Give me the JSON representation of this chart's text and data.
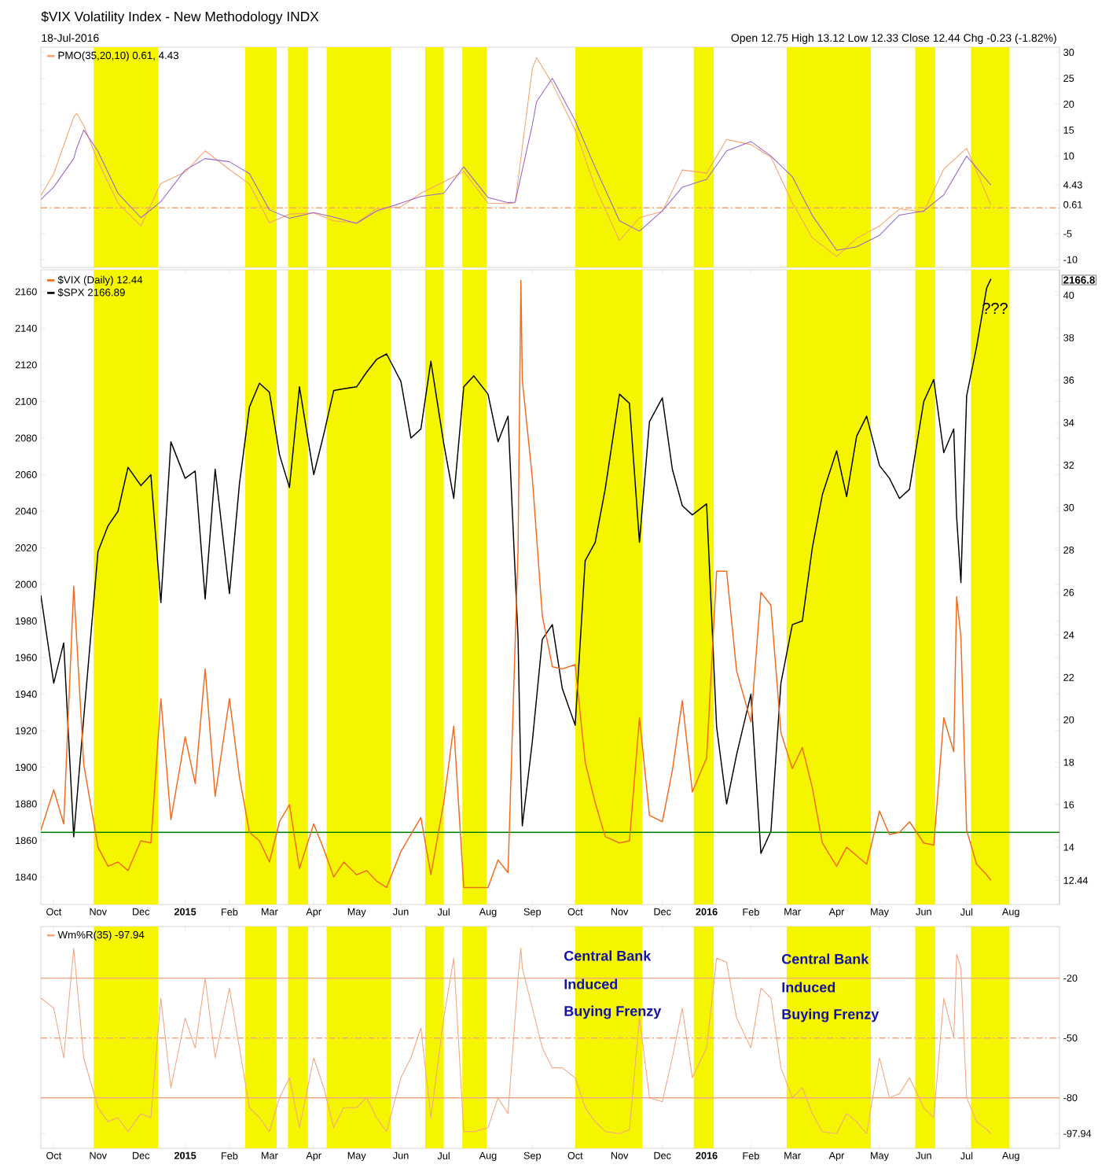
{
  "chart_data": [
    {
      "type": "line",
      "title": "$VIX Volatility Index - New Methodology INDX",
      "subtitle": "18-Jul-2016",
      "annotations": [
        "Open 12.75 High 13.12 Low 12.33 Close 12.44 Chg -0.23 (-1.82%)"
      ],
      "x": [
        "2014-09-22",
        "2014-10-01",
        "2014-10-15",
        "2014-10-17",
        "2014-10-22",
        "2014-11-01",
        "2014-11-15",
        "2014-12-01",
        "2014-12-15",
        "2015-01-01",
        "2015-01-15",
        "2015-02-01",
        "2015-02-15",
        "2015-03-01",
        "2015-03-15",
        "2015-04-01",
        "2015-04-15",
        "2015-05-01",
        "2015-05-15",
        "2015-06-01",
        "2015-06-15",
        "2015-07-01",
        "2015-07-15",
        "2015-08-01",
        "2015-08-15",
        "2015-08-20",
        "2015-09-01",
        "2015-09-04",
        "2015-09-15",
        "2015-10-01",
        "2015-10-15",
        "2015-11-01",
        "2015-11-15",
        "2015-12-01",
        "2015-12-15",
        "2016-01-01",
        "2016-01-15",
        "2016-02-01",
        "2016-02-15",
        "2016-03-01",
        "2016-03-15",
        "2016-04-01",
        "2016-04-15",
        "2016-05-01",
        "2016-05-15",
        "2016-06-01",
        "2016-06-15",
        "2016-07-01",
        "2016-07-18"
      ],
      "series": [
        {
          "name": "PMO(35,20,10) 0.61, 4.43",
          "color": "#f5a36f",
          "values": [
            2.4,
            6.6,
            17.5,
            18.2,
            15.9,
            9.0,
            0.9,
            -3.5,
            4.7,
            6.9,
            11.0,
            7.4,
            4.6,
            -2.9,
            -1.2,
            -1.0,
            -2.5,
            -2.9,
            -0.2,
            0.2,
            2.8,
            5.0,
            7.0,
            0.9,
            0.8,
            1.0,
            26.8,
            29.0,
            24.0,
            15.0,
            4.0,
            -6.3,
            -1.9,
            -0.7,
            7.3,
            6.7,
            13.2,
            12.2,
            9.8,
            1.0,
            -5.8,
            -9.4,
            -5.9,
            -3.5,
            -0.2,
            -0.8,
            7.5,
            11.5,
            0.6
          ]
        },
        {
          "color": "#9966cc",
          "values": [
            1.6,
            4.0,
            9.5,
            11.5,
            15.0,
            10.9,
            2.8,
            -1.9,
            1.2,
            7.3,
            9.5,
            8.9,
            6.6,
            -0.4,
            -2.0,
            -0.9,
            -1.8,
            -3.0,
            -0.6,
            0.9,
            2.2,
            2.8,
            7.9,
            2.0,
            1.0,
            1.1,
            16.0,
            20.5,
            25.0,
            16.8,
            7.8,
            -2.5,
            -4.5,
            -0.6,
            4.0,
            5.5,
            11.0,
            12.8,
            10.0,
            6.0,
            -1.5,
            -8.2,
            -7.5,
            -5.3,
            -1.4,
            -0.6,
            2.5,
            10.0,
            4.4
          ]
        }
      ],
      "xlim": [
        "2014-09-22",
        "2016-09-04"
      ],
      "ylim": [
        -11.5,
        31
      ],
      "yticks": [
        -10,
        -5,
        0.61,
        4.43,
        10,
        15,
        20,
        25,
        30
      ],
      "tick_labels": "y",
      "ref_lines": [
        {
          "axis": "y",
          "value": 0,
          "color": "#f5a36f",
          "line_style": "dashed"
        }
      ],
      "bands": [
        {
          "axis": "x",
          "from": "2014-10-29",
          "to": "2014-12-13",
          "color": "#f5f500"
        },
        {
          "axis": "x",
          "from": "2015-02-12",
          "to": "2015-03-06",
          "color": "#f5f500"
        },
        {
          "axis": "x",
          "from": "2015-03-14",
          "to": "2015-03-28",
          "color": "#f5f500"
        },
        {
          "axis": "x",
          "from": "2015-04-10",
          "to": "2015-05-25",
          "color": "#f5f500"
        },
        {
          "axis": "x",
          "from": "2015-06-18",
          "to": "2015-07-01",
          "color": "#f5f500"
        },
        {
          "axis": "x",
          "from": "2015-07-14",
          "to": "2015-07-31",
          "color": "#f5f500"
        },
        {
          "axis": "x",
          "from": "2015-10-01",
          "to": "2015-11-17",
          "color": "#f5f500"
        },
        {
          "axis": "x",
          "from": "2015-12-23",
          "to": "2016-01-06",
          "color": "#f5f500"
        },
        {
          "axis": "x",
          "from": "2016-02-26",
          "to": "2016-04-25",
          "color": "#f5f500"
        },
        {
          "axis": "x",
          "from": "2016-05-26",
          "to": "2016-06-09",
          "color": "#f5f500"
        },
        {
          "axis": "x",
          "from": "2016-07-04",
          "to": "2016-07-31",
          "color": "#f5f500"
        }
      ],
      "legend": "top left"
    },
    {
      "type": "line",
      "x": [
        "2014-09-22",
        "2014-10-01",
        "2014-10-08",
        "2014-10-15",
        "2014-10-22",
        "2014-11-01",
        "2014-11-08",
        "2014-11-15",
        "2014-11-22",
        "2014-12-01",
        "2014-12-08",
        "2014-12-15",
        "2014-12-22",
        "2015-01-01",
        "2015-01-08",
        "2015-01-15",
        "2015-01-22",
        "2015-02-01",
        "2015-02-08",
        "2015-02-15",
        "2015-02-22",
        "2015-03-01",
        "2015-03-08",
        "2015-03-15",
        "2015-03-22",
        "2015-04-01",
        "2015-04-08",
        "2015-04-15",
        "2015-04-22",
        "2015-05-01",
        "2015-05-08",
        "2015-05-15",
        "2015-05-22",
        "2015-06-01",
        "2015-06-08",
        "2015-06-15",
        "2015-06-22",
        "2015-07-01",
        "2015-07-08",
        "2015-07-15",
        "2015-07-22",
        "2015-08-01",
        "2015-08-08",
        "2015-08-15",
        "2015-08-22",
        "2015-08-24",
        "2015-08-25",
        "2015-09-01",
        "2015-09-08",
        "2015-09-15",
        "2015-09-22",
        "2015-10-01",
        "2015-10-08",
        "2015-10-15",
        "2015-10-22",
        "2015-11-01",
        "2015-11-08",
        "2015-11-15",
        "2015-11-22",
        "2015-12-01",
        "2015-12-08",
        "2015-12-15",
        "2015-12-22",
        "2016-01-01",
        "2016-01-08",
        "2016-01-15",
        "2016-01-22",
        "2016-02-01",
        "2016-02-08",
        "2016-02-15",
        "2016-02-22",
        "2016-03-01",
        "2016-03-08",
        "2016-03-15",
        "2016-03-22",
        "2016-04-01",
        "2016-04-08",
        "2016-04-15",
        "2016-04-22",
        "2016-05-01",
        "2016-05-08",
        "2016-05-15",
        "2016-05-22",
        "2016-06-01",
        "2016-06-08",
        "2016-06-15",
        "2016-06-22",
        "2016-06-24",
        "2016-06-27",
        "2016-07-01",
        "2016-07-08",
        "2016-07-15",
        "2016-07-18"
      ],
      "series": [
        {
          "name": "$SPX 2166.89",
          "color": "#000000",
          "values": [
            1994,
            1946,
            1968,
            1862,
            1927,
            2018,
            2032,
            2040,
            2064,
            2054,
            2060,
            1990,
            2078,
            2058,
            2062,
            1992,
            2063,
            1995,
            2055,
            2097,
            2110,
            2105,
            2071,
            2053,
            2108,
            2060,
            2082,
            2106,
            2107,
            2108,
            2116,
            2123,
            2126,
            2111,
            2080,
            2085,
            2122,
            2077,
            2047,
            2108,
            2114,
            2104,
            2078,
            2092,
            1971,
            1893,
            1868,
            1914,
            1970,
            1978,
            1943,
            1923,
            2013,
            2023,
            2052,
            2104,
            2099,
            2023,
            2089,
            2102,
            2063,
            2043,
            2038,
            2044,
            1922,
            1880,
            1907,
            1940,
            1853,
            1865,
            1946,
            1978,
            1980,
            2020,
            2049,
            2073,
            2048,
            2081,
            2092,
            2065,
            2058,
            2047,
            2052,
            2100,
            2112,
            2072,
            2085,
            2037,
            2001,
            2103,
            2130,
            2162,
            2167
          ]
        },
        {
          "name": "$VIX (Daily) 12.44",
          "color": "#f26b1d",
          "axis": "y2",
          "values": [
            14.8,
            16.7,
            15.1,
            26.3,
            17.9,
            14.0,
            13.1,
            13.3,
            12.9,
            14.3,
            14.2,
            21.0,
            15.3,
            19.2,
            17.0,
            22.4,
            16.4,
            21.0,
            17.3,
            14.7,
            14.3,
            13.3,
            15.2,
            16.0,
            13.0,
            15.1,
            13.9,
            12.6,
            13.3,
            12.7,
            12.9,
            12.4,
            12.1,
            13.8,
            14.6,
            15.4,
            12.7,
            16.1,
            19.7,
            12.1,
            12.1,
            12.1,
            13.4,
            12.8,
            28.0,
            40.7,
            36.0,
            31.4,
            24.9,
            22.5,
            22.4,
            22.6,
            18.0,
            16.1,
            14.5,
            14.2,
            14.3,
            20.1,
            15.5,
            15.2,
            17.6,
            20.9,
            16.6,
            18.2,
            27.0,
            27.0,
            22.3,
            19.9,
            26.0,
            25.4,
            19.4,
            17.7,
            18.7,
            16.8,
            14.2,
            13.1,
            14.0,
            13.6,
            13.2,
            15.7,
            14.6,
            14.7,
            15.2,
            14.2,
            14.1,
            20.1,
            18.5,
            25.8,
            23.9,
            14.8,
            13.2,
            12.7,
            12.44
          ]
        }
      ],
      "xlim": [
        "2014-09-22",
        "2016-09-04"
      ],
      "xticks": [
        {
          "value": "2014-10-01",
          "label": "Oct"
        },
        {
          "value": "2014-11-01",
          "label": "Nov"
        },
        {
          "value": "2014-12-01",
          "label": "Dec"
        },
        {
          "value": "2015-01-01",
          "label": "2015"
        },
        {
          "value": "2015-02-01",
          "label": "Feb"
        },
        {
          "value": "2015-03-01",
          "label": "Mar"
        },
        {
          "value": "2015-04-01",
          "label": "Apr"
        },
        {
          "value": "2015-05-01",
          "label": "May"
        },
        {
          "value": "2015-06-01",
          "label": "Jun"
        },
        {
          "value": "2015-07-01",
          "label": "Jul"
        },
        {
          "value": "2015-08-01",
          "label": "Aug"
        },
        {
          "value": "2015-09-01",
          "label": "Sep"
        },
        {
          "value": "2015-10-01",
          "label": "Oct"
        },
        {
          "value": "2015-11-01",
          "label": "Nov"
        },
        {
          "value": "2015-12-01",
          "label": "Dec"
        },
        {
          "value": "2016-01-01",
          "label": "2016"
        },
        {
          "value": "2016-02-01",
          "label": "Feb"
        },
        {
          "value": "2016-03-01",
          "label": "Mar"
        },
        {
          "value": "2016-04-01",
          "label": "Apr"
        },
        {
          "value": "2016-05-01",
          "label": "May"
        },
        {
          "value": "2016-06-01",
          "label": "Jun"
        },
        {
          "value": "2016-07-01",
          "label": "Jul"
        },
        {
          "value": "2016-08-01",
          "label": "Aug"
        }
      ],
      "ylim": [
        1825,
        2172
      ],
      "yticks": [
        1840,
        1860,
        1880,
        1900,
        1920,
        1940,
        1960,
        1980,
        2000,
        2020,
        2040,
        2060,
        2080,
        2100,
        2120,
        2140,
        2160
      ],
      "y2lim": [
        11.3,
        41.2
      ],
      "y2ticks": [
        12.44,
        14,
        16,
        18,
        20,
        22,
        24,
        26,
        28,
        30,
        32,
        34,
        36,
        38,
        40
      ],
      "ref_lines": [
        {
          "axis": "y2",
          "value": 14.7,
          "color": "#008000"
        }
      ],
      "bands": [
        {
          "axis": "x",
          "from": "2014-10-29",
          "to": "2014-12-13",
          "color": "#f5f500"
        },
        {
          "axis": "x",
          "from": "2015-02-12",
          "to": "2015-03-06",
          "color": "#f5f500"
        },
        {
          "axis": "x",
          "from": "2015-03-14",
          "to": "2015-03-28",
          "color": "#f5f500"
        },
        {
          "axis": "x",
          "from": "2015-04-10",
          "to": "2015-05-25",
          "color": "#f5f500"
        },
        {
          "axis": "x",
          "from": "2015-06-18",
          "to": "2015-07-01",
          "color": "#f5f500"
        },
        {
          "axis": "x",
          "from": "2015-07-14",
          "to": "2015-07-31",
          "color": "#f5f500"
        },
        {
          "axis": "x",
          "from": "2015-10-01",
          "to": "2015-11-17",
          "color": "#f5f500"
        },
        {
          "axis": "x",
          "from": "2015-12-23",
          "to": "2016-01-06",
          "color": "#f5f500"
        },
        {
          "axis": "x",
          "from": "2016-02-26",
          "to": "2016-04-25",
          "color": "#f5f500"
        },
        {
          "axis": "x",
          "from": "2016-05-26",
          "to": "2016-06-09",
          "color": "#f5f500"
        },
        {
          "axis": "x",
          "from": "2016-07-04",
          "to": "2016-07-31",
          "color": "#f5f500"
        }
      ],
      "legend": "top left",
      "annotations": [
        "???",
        "2166.8"
      ]
    },
    {
      "type": "line",
      "x": [
        "2014-09-22",
        "2014-10-01",
        "2014-10-08",
        "2014-10-15",
        "2014-10-22",
        "2014-11-01",
        "2014-11-08",
        "2014-11-15",
        "2014-11-22",
        "2014-12-01",
        "2014-12-08",
        "2014-12-15",
        "2014-12-22",
        "2015-01-01",
        "2015-01-08",
        "2015-01-15",
        "2015-01-22",
        "2015-02-01",
        "2015-02-08",
        "2015-02-15",
        "2015-02-22",
        "2015-03-01",
        "2015-03-08",
        "2015-03-15",
        "2015-03-22",
        "2015-04-01",
        "2015-04-08",
        "2015-04-15",
        "2015-04-22",
        "2015-05-01",
        "2015-05-08",
        "2015-05-15",
        "2015-05-22",
        "2015-06-01",
        "2015-06-08",
        "2015-06-15",
        "2015-06-22",
        "2015-07-01",
        "2015-07-08",
        "2015-07-15",
        "2015-07-22",
        "2015-08-01",
        "2015-08-08",
        "2015-08-15",
        "2015-08-22",
        "2015-08-24",
        "2015-08-25",
        "2015-09-01",
        "2015-09-08",
        "2015-09-15",
        "2015-09-22",
        "2015-10-01",
        "2015-10-08",
        "2015-10-15",
        "2015-10-22",
        "2015-11-01",
        "2015-11-08",
        "2015-11-15",
        "2015-11-22",
        "2015-12-01",
        "2015-12-08",
        "2015-12-15",
        "2015-12-22",
        "2016-01-01",
        "2016-01-08",
        "2016-01-15",
        "2016-01-22",
        "2016-02-01",
        "2016-02-08",
        "2016-02-15",
        "2016-02-22",
        "2016-03-01",
        "2016-03-08",
        "2016-03-15",
        "2016-03-22",
        "2016-04-01",
        "2016-04-08",
        "2016-04-15",
        "2016-04-22",
        "2016-05-01",
        "2016-05-08",
        "2016-05-15",
        "2016-05-22",
        "2016-06-01",
        "2016-06-08",
        "2016-06-15",
        "2016-06-22",
        "2016-06-24",
        "2016-06-27",
        "2016-07-01",
        "2016-07-08",
        "2016-07-15",
        "2016-07-18"
      ],
      "series": [
        {
          "name": "Wm%R(35) -97.94",
          "color": "#f4a582",
          "values": [
            -30,
            -35,
            -60,
            -5,
            -60,
            -85,
            -92,
            -90,
            -97,
            -88,
            -90,
            -30,
            -75,
            -40,
            -55,
            -20,
            -60,
            -25,
            -55,
            -85,
            -90,
            -97,
            -80,
            -70,
            -95,
            -60,
            -75,
            -95,
            -85,
            -85,
            -80,
            -90,
            -97,
            -70,
            -60,
            -45,
            -90,
            -40,
            -10,
            -97,
            -97,
            -95,
            -80,
            -88,
            -20,
            -5,
            -15,
            -35,
            -55,
            -65,
            -65,
            -70,
            -85,
            -92,
            -97,
            -98,
            -96,
            -40,
            -80,
            -82,
            -60,
            -35,
            -70,
            -55,
            -10,
            -12,
            -40,
            -55,
            -25,
            -30,
            -65,
            -80,
            -75,
            -88,
            -97,
            -98,
            -88,
            -92,
            -98,
            -60,
            -80,
            -78,
            -70,
            -85,
            -90,
            -30,
            -50,
            -8,
            -15,
            -80,
            -92,
            -96,
            -98
          ]
        }
      ],
      "xlim": [
        "2014-09-22",
        "2016-09-04"
      ],
      "xticks": [
        {
          "value": "2014-10-01",
          "label": "Oct"
        },
        {
          "value": "2014-11-01",
          "label": "Nov"
        },
        {
          "value": "2014-12-01",
          "label": "Dec"
        },
        {
          "value": "2015-01-01",
          "label": "2015"
        },
        {
          "value": "2015-02-01",
          "label": "Feb"
        },
        {
          "value": "2015-03-01",
          "label": "Mar"
        },
        {
          "value": "2015-04-01",
          "label": "Apr"
        },
        {
          "value": "2015-05-01",
          "label": "May"
        },
        {
          "value": "2015-06-01",
          "label": "Jun"
        },
        {
          "value": "2015-07-01",
          "label": "Jul"
        },
        {
          "value": "2015-08-01",
          "label": "Aug"
        },
        {
          "value": "2015-09-01",
          "label": "Sep"
        },
        {
          "value": "2015-10-01",
          "label": "Oct"
        },
        {
          "value": "2015-11-01",
          "label": "Nov"
        },
        {
          "value": "2015-12-01",
          "label": "Dec"
        },
        {
          "value": "2016-01-01",
          "label": "2016"
        },
        {
          "value": "2016-02-01",
          "label": "Feb"
        },
        {
          "value": "2016-03-01",
          "label": "Mar"
        },
        {
          "value": "2016-04-01",
          "label": "Apr"
        },
        {
          "value": "2016-05-01",
          "label": "May"
        },
        {
          "value": "2016-06-01",
          "label": "Jun"
        },
        {
          "value": "2016-07-01",
          "label": "Jul"
        },
        {
          "value": "2016-08-01",
          "label": "Aug"
        }
      ],
      "ylim": [
        -105.4,
        5.9
      ],
      "yticks": [
        -97.94,
        -80,
        -50,
        -20
      ],
      "ref_lines": [
        {
          "axis": "y",
          "value": -20,
          "color": "#f4a582"
        },
        {
          "axis": "y",
          "value": -80,
          "color": "#f4a582"
        },
        {
          "axis": "y",
          "value": -50,
          "color": "#f4a582",
          "line_style": "dashed"
        }
      ],
      "bands": [
        {
          "axis": "x",
          "from": "2014-10-29",
          "to": "2014-12-13",
          "color": "#f5f500"
        },
        {
          "axis": "x",
          "from": "2015-02-12",
          "to": "2015-03-06",
          "color": "#f5f500"
        },
        {
          "axis": "x",
          "from": "2015-03-14",
          "to": "2015-03-28",
          "color": "#f5f500"
        },
        {
          "axis": "x",
          "from": "2015-04-10",
          "to": "2015-05-25",
          "color": "#f5f500"
        },
        {
          "axis": "x",
          "from": "2015-06-18",
          "to": "2015-07-01",
          "color": "#f5f500"
        },
        {
          "axis": "x",
          "from": "2015-07-14",
          "to": "2015-07-31",
          "color": "#f5f500"
        },
        {
          "axis": "x",
          "from": "2015-10-01",
          "to": "2015-11-17",
          "color": "#f5f500"
        },
        {
          "axis": "x",
          "from": "2015-12-23",
          "to": "2016-01-06",
          "color": "#f5f500"
        },
        {
          "axis": "x",
          "from": "2016-02-26",
          "to": "2016-04-25",
          "color": "#f5f500"
        },
        {
          "axis": "x",
          "from": "2016-05-26",
          "to": "2016-06-09",
          "color": "#f5f500"
        },
        {
          "axis": "x",
          "from": "2016-07-04",
          "to": "2016-07-31",
          "color": "#f5f500"
        }
      ],
      "legend": "top left",
      "annotations": [
        "Central Bank",
        "Induced",
        "Buying Frenzy",
        "Central Bank",
        "Induced",
        "Buying Frenzy"
      ]
    }
  ]
}
